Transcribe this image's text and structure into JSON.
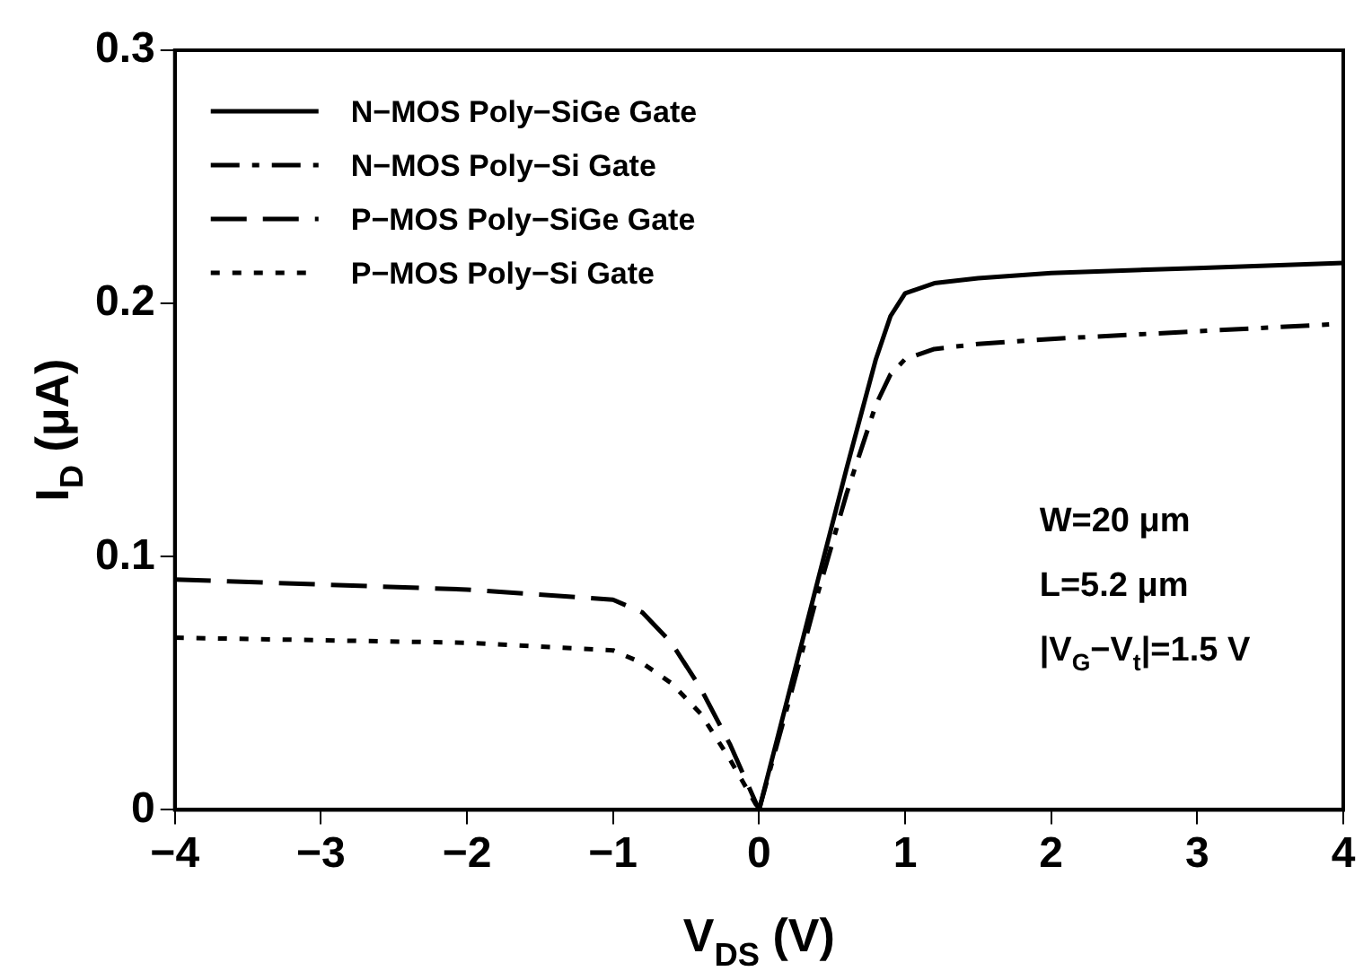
{
  "chart_data": {
    "type": "line",
    "xlabel": "V$_{DS}$ (V)",
    "ylabel": "I$_{D}$ (μA)",
    "xlim": [
      -4,
      4
    ],
    "xticks": [
      -4,
      -3,
      -2,
      -1,
      0,
      1,
      2,
      3,
      4
    ],
    "ylim": [
      0,
      0.3
    ],
    "yticks": [
      0,
      0.1,
      0.2,
      0.3
    ],
    "grid": false,
    "legend": "top left",
    "marker": "none",
    "annotations": [
      "W=20 μm",
      "L=5.2 μm",
      "|V$_{G}$−V$_{t}$|=1.5 V"
    ],
    "series": [
      {
        "name": "N−MOS Poly−SiGe Gate",
        "color": "#000000",
        "line_style": "solid",
        "x": [
          0,
          0.2,
          0.4,
          0.6,
          0.8,
          0.9,
          1.0,
          1.2,
          1.5,
          2,
          3,
          4
        ],
        "values": [
          0,
          0.045,
          0.09,
          0.135,
          0.178,
          0.195,
          0.204,
          0.208,
          0.21,
          0.212,
          0.214,
          0.216
        ]
      },
      {
        "name": "N−MOS Poly−Si Gate",
        "color": "#000000",
        "line_style": "dashdot",
        "x": [
          0,
          0.2,
          0.4,
          0.6,
          0.8,
          0.9,
          1.0,
          1.2,
          1.5,
          2,
          3,
          4
        ],
        "values": [
          0,
          0.042,
          0.085,
          0.125,
          0.16,
          0.172,
          0.178,
          0.182,
          0.184,
          0.186,
          0.189,
          0.192
        ]
      },
      {
        "name": "P−MOS Poly−SiGe Gate",
        "color": "#000000",
        "line_style": "dashed",
        "x": [
          -4,
          -3,
          -2,
          -1,
          -0.8,
          -0.6,
          -0.4,
          -0.2,
          0
        ],
        "values": [
          0.091,
          0.089,
          0.087,
          0.083,
          0.078,
          0.066,
          0.048,
          0.026,
          0
        ]
      },
      {
        "name": "P−MOS Poly−Si Gate",
        "color": "#000000",
        "line_style": "dotted",
        "x": [
          -4,
          -3,
          -2,
          -1,
          -0.8,
          -0.6,
          -0.4,
          -0.2,
          0
        ],
        "values": [
          0.068,
          0.067,
          0.066,
          0.063,
          0.058,
          0.05,
          0.038,
          0.02,
          0
        ]
      }
    ]
  }
}
